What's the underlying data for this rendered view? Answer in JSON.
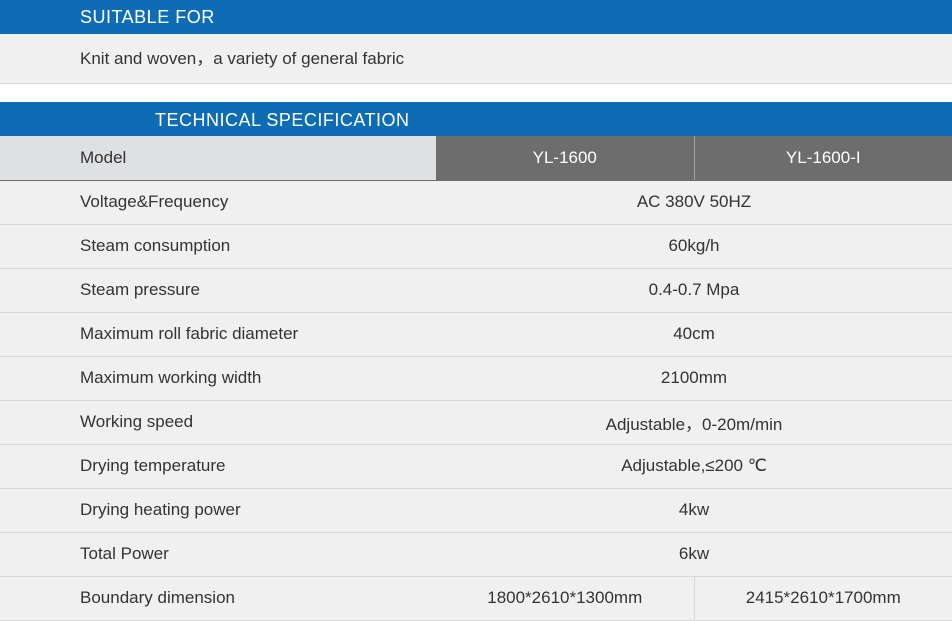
{
  "colors": {
    "header_blue": "#0d6cb3",
    "row_bg": "#f0f0f0",
    "model_row_bg": "#6d6d6d",
    "model_label_bg": "#dfe0e2",
    "text_dark": "#333333",
    "text_light": "#ffffff",
    "border": "#d8d8d8"
  },
  "suitable": {
    "header": "SUITABLE FOR",
    "body": "Knit and woven，a variety of general fabric"
  },
  "tech": {
    "header": "TECHNICAL SPECIFICATION",
    "model_label": "Model",
    "model_a": "YL-1600",
    "model_b": "YL-1600-I",
    "rows": [
      {
        "label": "Voltage&Frequency",
        "value": "AC 380V 50HZ",
        "split": false
      },
      {
        "label": "Steam consumption",
        "value": "60kg/h",
        "split": false
      },
      {
        "label": "Steam pressure",
        "value": "0.4-0.7 Mpa",
        "split": false
      },
      {
        "label": "Maximum roll fabric diameter",
        "value": "40cm",
        "split": false
      },
      {
        "label": "Maximum working width",
        "value": "2100mm",
        "split": false
      },
      {
        "label": "Working speed",
        "value": "Adjustable，0-20m/min",
        "split": false
      },
      {
        "label": "Drying temperature",
        "value": "Adjustable,≤200 ℃",
        "split": false
      },
      {
        "label": "Drying heating power",
        "value": "4kw",
        "split": false
      },
      {
        "label": "Total  Power",
        "value": "6kw",
        "split": false
      },
      {
        "label": "Boundary dimension",
        "value_a": "1800*2610*1300mm",
        "value_b": "2415*2610*1700mm",
        "split": true
      }
    ]
  }
}
